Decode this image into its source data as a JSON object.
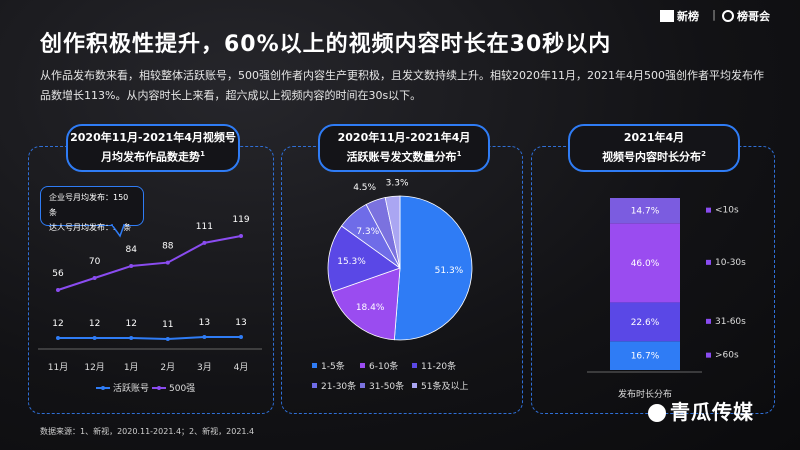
{
  "header": {
    "title": "创作积极性提升，60%以上的视频内容时长在30秒以内",
    "description": "从作品发布数来看，相较整体活跃账号，500强创作者内容生产更积极，且发文数持续上升。相较2020年11月，2021年4月500强创作者平均发布作品数增长113%。从内容时长上来看，超六成以上视频内容的时间在30s以下。",
    "logo_left": "新榜",
    "logo_right": "榜哥会"
  },
  "source": "数据来源：1、新视，2020.11-2021.4；2、新视，2021.4",
  "watermark": "青瓜传媒",
  "chart_data": [
    {
      "type": "line",
      "title": "2020年11月-2021年4月视频号",
      "title_line2": "月均发布作品数走势",
      "title_sup": "1",
      "categories": [
        "11月",
        "12月",
        "1月",
        "2月",
        "3月",
        "4月"
      ],
      "series": [
        {
          "name": "活跃账号",
          "values": [
            12,
            12,
            12,
            11,
            13,
            13
          ],
          "color": "#2f7cf5"
        },
        {
          "name": "500强",
          "values": [
            56,
            70,
            84,
            88,
            111,
            119
          ],
          "color": "#8a4cf0"
        }
      ],
      "ylim": [
        0,
        130
      ],
      "callout": [
        "企业号月均发布：150条",
        "达人号月均发布：50条"
      ]
    },
    {
      "type": "pie",
      "title": "2020年11月-2021年4月",
      "title_line2": "活跃账号发文数量分布",
      "title_sup": "1",
      "slices": [
        {
          "label": "1-5条",
          "value": 51.3,
          "display": "51.3%",
          "color": "#2f7cf5"
        },
        {
          "label": "6-10条",
          "value": 18.4,
          "display": "18.4%",
          "color": "#9a4cf0"
        },
        {
          "label": "11-20条",
          "value": 15.3,
          "display": "15.3%",
          "color": "#5a48e6"
        },
        {
          "label": "21-30条",
          "value": 7.3,
          "display": "7.3%",
          "color": "#6f6ce8"
        },
        {
          "label": "31-50条",
          "value": 4.5,
          "display": "4.5%",
          "color": "#7b72df"
        },
        {
          "label": "51条及以上",
          "value": 3.3,
          "display": "3.3%",
          "color": "#aaa6f2"
        }
      ]
    },
    {
      "type": "bar",
      "stacked": true,
      "title": "2021年4月",
      "title_line2": "视频号内容时长分布",
      "title_sup": "2",
      "xlabel": "发布时长分布",
      "segments": [
        {
          "label": ">60s",
          "value": 16.7,
          "display": "16.7%",
          "color": "#2f7cf5"
        },
        {
          "label": "31-60s",
          "value": 22.6,
          "display": "22.6%",
          "color": "#5a48e6"
        },
        {
          "label": "10-30s",
          "value": 46.0,
          "display": "46.0%",
          "color": "#9a4cf0"
        },
        {
          "label": "<10s",
          "value": 14.7,
          "display": "14.7%",
          "color": "#7b5ce0"
        }
      ]
    }
  ]
}
